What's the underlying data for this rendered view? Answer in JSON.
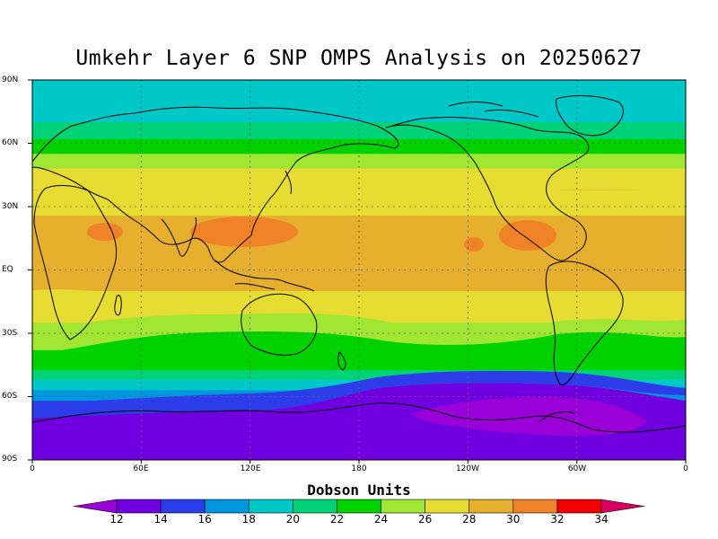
{
  "title": "Umkehr Layer 6 SNP OMPS Analysis on 20250627",
  "lat_labels": [
    "90N",
    "60N",
    "30N",
    "EQ",
    "30S",
    "60S",
    "90S"
  ],
  "lon_labels": [
    "0",
    "60E",
    "120E",
    "180",
    "120W",
    "60W",
    "0"
  ],
  "colorbar": {
    "title": "Dobson Units",
    "labels": [
      "12",
      "14",
      "16",
      "18",
      "20",
      "22",
      "24",
      "26",
      "28",
      "30",
      "32",
      "34"
    ],
    "colors": [
      "#9a00d8",
      "#7000e0",
      "#2c3ce8",
      "#0096e0",
      "#00c8c8",
      "#00d278",
      "#00d200",
      "#a0e632",
      "#e6dc32",
      "#e6af2d",
      "#f08228",
      "#f00000",
      "#d80060"
    ]
  },
  "bands": [
    {
      "from": "90N",
      "to": "70N",
      "color": "#00c8c8"
    },
    {
      "from": "70N",
      "to": "62N",
      "color": "#00d278"
    },
    {
      "from": "62N",
      "to": "55N",
      "color": "#00d200"
    },
    {
      "from": "55N",
      "to": "48N",
      "color": "#a0e632"
    },
    {
      "from": "48N",
      "to": "38N",
      "color": "#e6dc32"
    },
    {
      "from": "38N",
      "to": "10S",
      "color": "#e6af2d"
    },
    {
      "from": "10S",
      "to": "25S",
      "color": "#e6dc32"
    },
    {
      "from": "25S",
      "to": "38S",
      "color": "#a0e632"
    },
    {
      "from": "38S",
      "to": "47S",
      "color": "#00d200"
    },
    {
      "from": "47S",
      "to": "52S",
      "color": "#00d278"
    },
    {
      "from": "52S",
      "to": "57S",
      "color": "#00c8c8"
    },
    {
      "from": "57S",
      "to": "62S",
      "color": "#0096e0"
    },
    {
      "from": "62S",
      "to": "66S",
      "color": "#2c3ce8"
    },
    {
      "from": "66S",
      "to": "90S",
      "color": "#7000e0"
    }
  ],
  "features": {
    "high_ozone_color": "#f08228",
    "low_ozone_color": "#9a00d8"
  }
}
